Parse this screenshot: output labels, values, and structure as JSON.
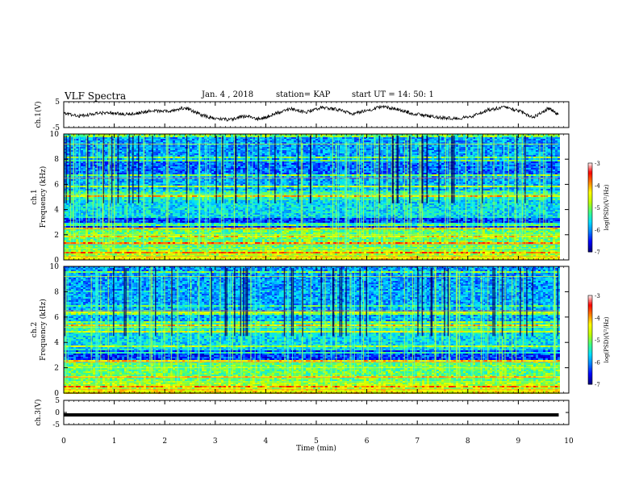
{
  "header": {
    "title": "VLF Spectra",
    "date": "Jan. 4 , 2018",
    "station": "station= KAP",
    "start_ut": "start UT = 14: 50: 1"
  },
  "chart_data": [
    {
      "type": "line",
      "name": "ch1-voltage-trace",
      "ylabel": "ch.1(V)",
      "ylim": [
        -5,
        5
      ],
      "yticks": [
        5,
        -5
      ],
      "x": [
        0,
        0.3,
        0.6,
        0.9,
        1.2,
        1.5,
        1.8,
        2.1,
        2.4,
        2.7,
        3.0,
        3.3,
        3.6,
        3.9,
        4.2,
        4.5,
        4.8,
        5.1,
        5.4,
        5.7,
        6.0,
        6.3,
        6.6,
        6.9,
        7.2,
        7.5,
        7.8,
        8.1,
        8.4,
        8.7,
        9.0,
        9.3,
        9.6,
        9.8
      ],
      "y": [
        0.5,
        -0.5,
        0.2,
        1.0,
        0.0,
        0.8,
        1.5,
        1.2,
        2.8,
        0.0,
        -1.5,
        -2.0,
        -0.5,
        -1.8,
        0.5,
        2.2,
        1.0,
        2.8,
        2.0,
        0.3,
        1.5,
        3.2,
        2.0,
        0.5,
        -0.5,
        -1.2,
        -1.5,
        -0.5,
        1.8,
        2.8,
        1.5,
        -1.0,
        2.5,
        0.0
      ]
    },
    {
      "type": "heatmap",
      "name": "ch1-spectrogram",
      "ylabel_top": "ch.1",
      "ylabel": "Frequency (kHz)",
      "ylim": [
        0,
        10
      ],
      "yticks": [
        0,
        2,
        4,
        6,
        8,
        10
      ],
      "colorbar": {
        "label": "log(PSD)(V²/Hz)",
        "range": [
          -7,
          -3
        ],
        "ticks": [
          -3,
          -4,
          -5,
          -6,
          -7
        ]
      }
    },
    {
      "type": "heatmap",
      "name": "ch2-spectrogram",
      "ylabel_top": "ch.2",
      "ylabel": "Frequency (kHz)",
      "ylim": [
        0,
        10
      ],
      "yticks": [
        0,
        2,
        4,
        6,
        8,
        10
      ],
      "colorbar": {
        "label": "log(PSD)(V²/Hz)",
        "range": [
          -7,
          -3
        ],
        "ticks": [
          -3,
          -4,
          -5,
          -6,
          -7
        ]
      }
    },
    {
      "type": "line",
      "name": "ch3-voltage-trace",
      "ylabel": "ch.3(V)",
      "ylim": [
        -5,
        5
      ],
      "yticks": [
        5,
        0,
        -5
      ],
      "x": [
        0,
        9.8
      ],
      "y": [
        -1,
        -1
      ]
    }
  ],
  "xaxis": {
    "label": "Time (min)",
    "ticks": [
      0,
      1,
      2,
      3,
      4,
      5,
      6,
      7,
      8,
      9,
      10
    ],
    "range": [
      0,
      10
    ]
  },
  "colors": {
    "heatmap_stops": [
      "#000080",
      "#0000ff",
      "#0080ff",
      "#00e0ff",
      "#40ff80",
      "#c0ff00",
      "#ffff00",
      "#ff8000",
      "#ff0000",
      "#ffffff"
    ]
  }
}
